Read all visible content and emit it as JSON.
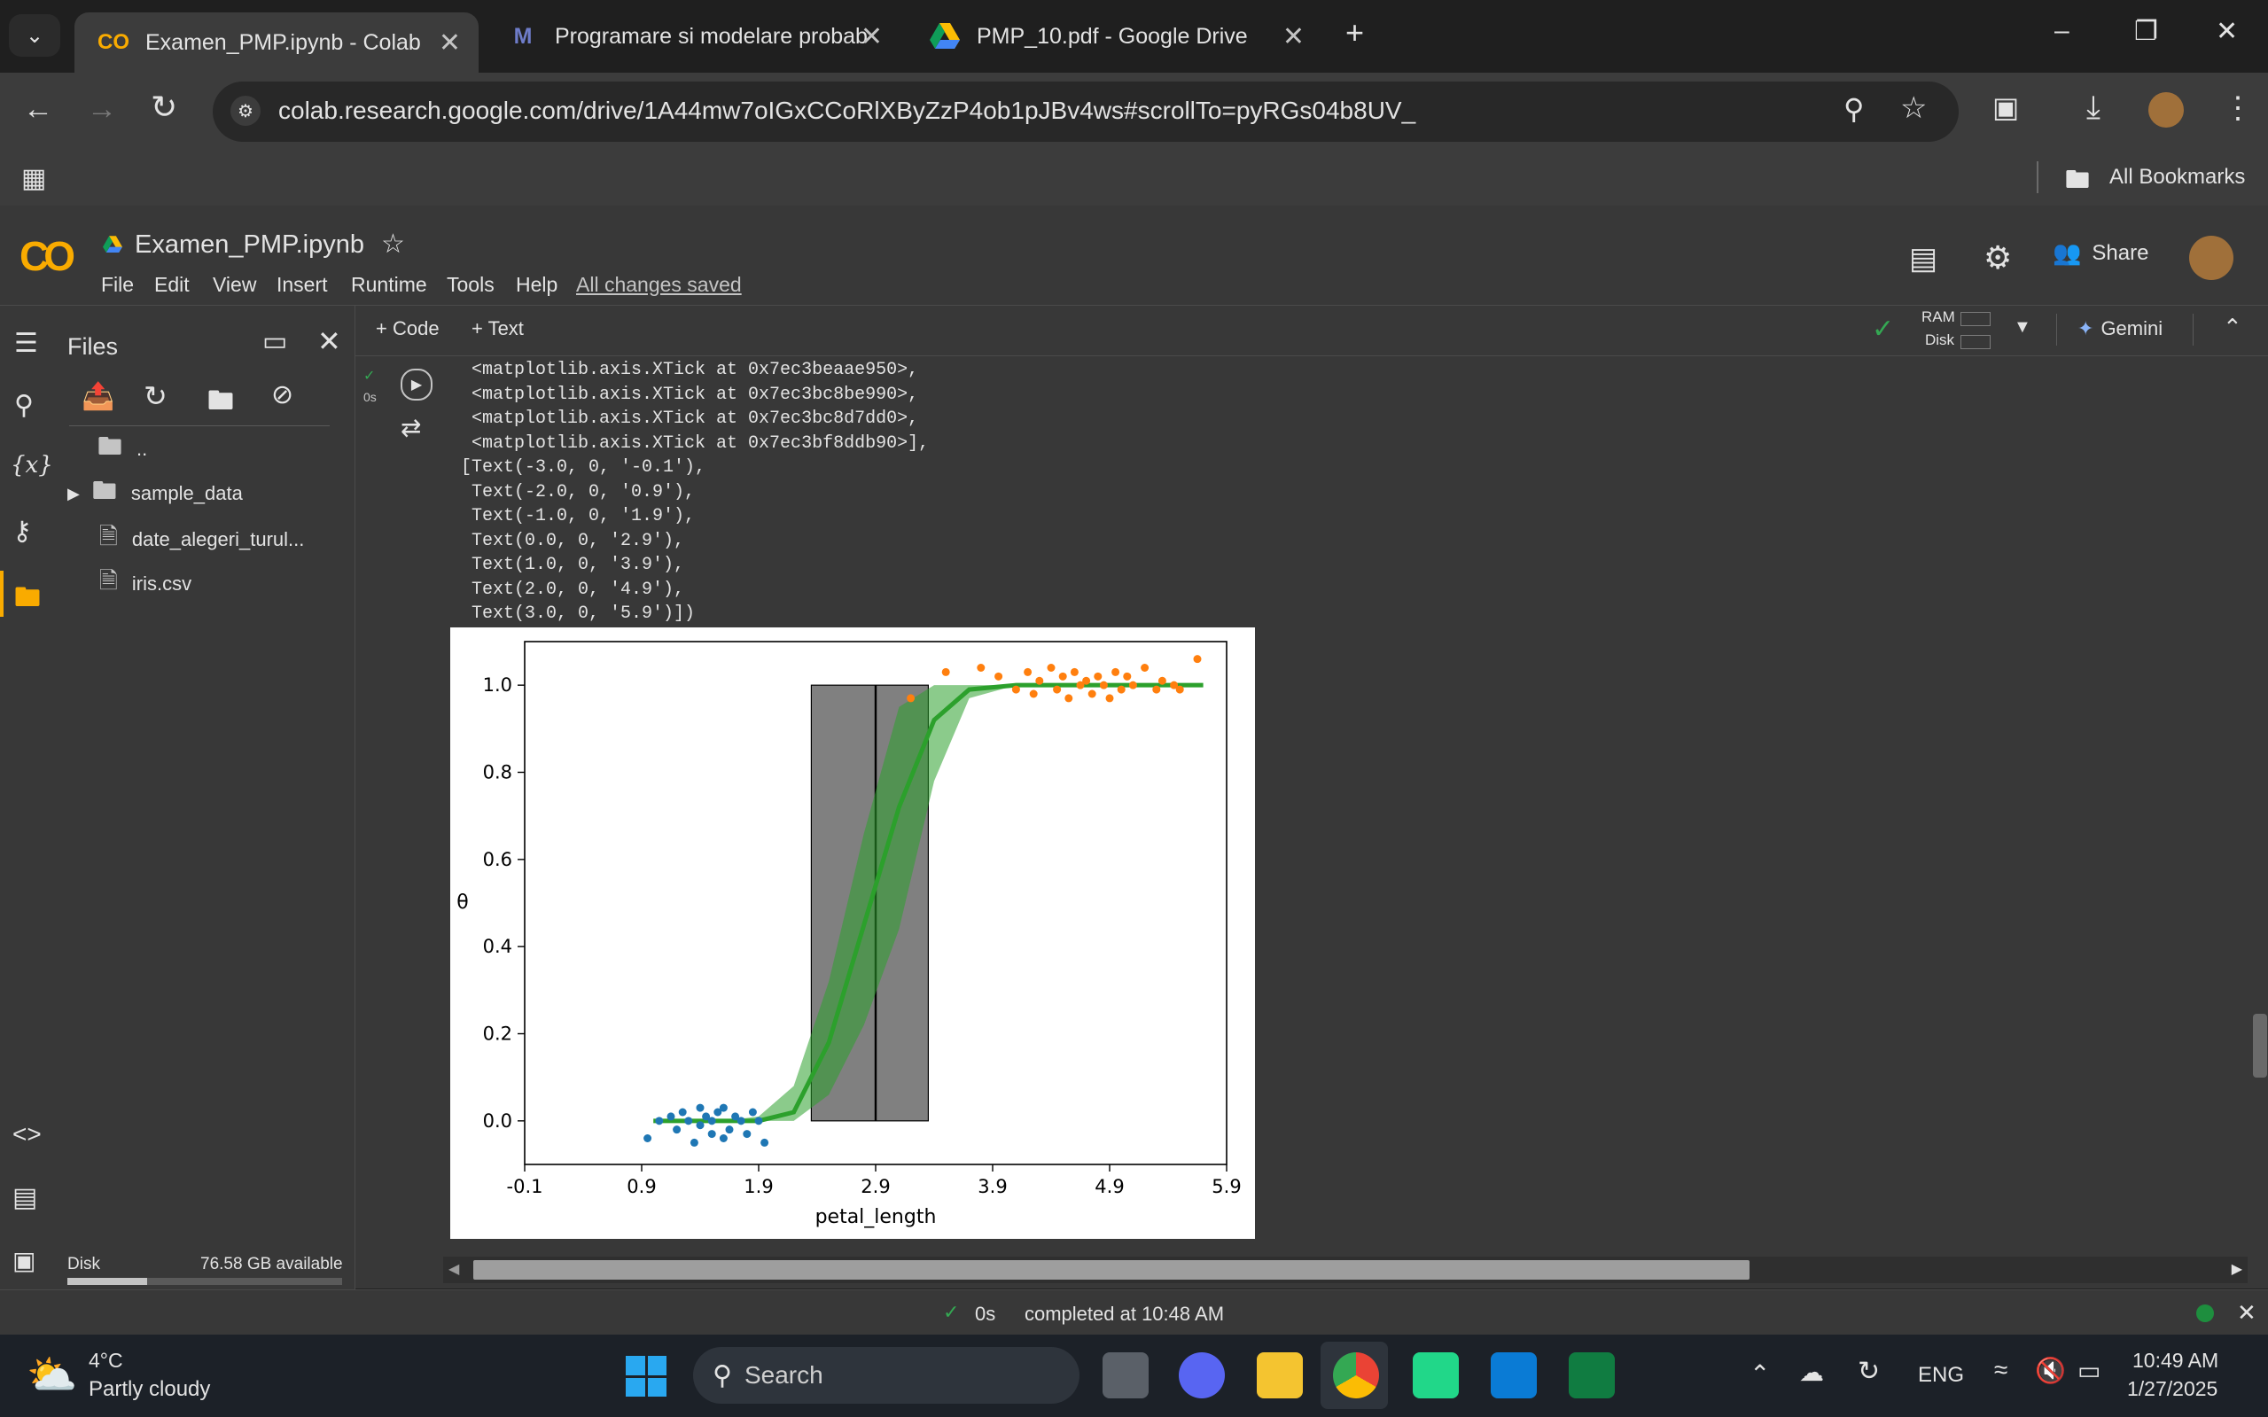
{
  "browser": {
    "tabs": [
      {
        "label": "Examen_PMP.ipynb - Colab",
        "active": true
      },
      {
        "label": "Programare si modelare probab"
      },
      {
        "label": "PMP_10.pdf - Google Drive"
      }
    ],
    "url": "colab.research.google.com/drive/1A44mw7oIGxCCoRlXByZzP4ob1pJBv4ws#scrollTo=pyRGs04b8UV_",
    "bookmarks_label": "All Bookmarks"
  },
  "colab": {
    "notebook_title": "Examen_PMP.ipynb",
    "menu": [
      "File",
      "Edit",
      "View",
      "Insert",
      "Runtime",
      "Tools",
      "Help"
    ],
    "save_status": "All changes saved",
    "share_label": "Share",
    "add_code": "+ Code",
    "add_text": "+ Text",
    "ram_label": "RAM",
    "disk_label": "Disk",
    "gemini_label": "Gemini",
    "exec_time": "0s"
  },
  "sidebar": {
    "title": "Files",
    "items": [
      {
        "label": ".."
      },
      {
        "label": "sample_data"
      },
      {
        "label": "date_alegeri_turul..."
      },
      {
        "label": "iris.csv"
      }
    ],
    "disk_label": "Disk",
    "disk_available": "76.58 GB available",
    "disk_used_fraction": 0.29
  },
  "output_lines": [
    " <matplotlib.axis.XTick at 0x7ec3beaae950>,",
    " <matplotlib.axis.XTick at 0x7ec3bc8be990>,",
    " <matplotlib.axis.XTick at 0x7ec3bc8d7dd0>,",
    " <matplotlib.axis.XTick at 0x7ec3bf8ddb90>],",
    "[Text(-3.0, 0, '-0.1'),",
    " Text(-2.0, 0, '0.9'),",
    " Text(-1.0, 0, '1.9'),",
    " Text(0.0, 0, '2.9'),",
    " Text(1.0, 0, '3.9'),",
    " Text(2.0, 0, '4.9'),",
    " Text(3.0, 0, '5.9')])"
  ],
  "chart_data": {
    "type": "line",
    "xlabel": "petal_length",
    "ylabel": "θ",
    "xlim": [
      -3.0,
      3.0
    ],
    "ylim": [
      -0.1,
      1.1
    ],
    "x_tick_positions": [
      -3,
      -2,
      -1,
      0,
      1,
      2,
      3
    ],
    "x_tick_labels": [
      "-0.1",
      "0.9",
      "1.9",
      "2.9",
      "3.9",
      "4.9",
      "5.9"
    ],
    "y_ticks": [
      0.0,
      0.2,
      0.4,
      0.6,
      0.8,
      1.0
    ],
    "y_tick_labels": [
      "0.0",
      "0.2",
      "0.4",
      "0.6",
      "0.8",
      "1.0"
    ],
    "series": [
      {
        "type": "line",
        "color": "#2ca02c",
        "x": [
          -1.9,
          -1.6,
          -1.3,
          -1.0,
          -0.7,
          -0.4,
          -0.1,
          0.2,
          0.5,
          0.8,
          1.2,
          1.6,
          2.0,
          2.4,
          2.8
        ],
        "y": [
          0.0,
          0.0,
          0.0,
          0.0,
          0.02,
          0.18,
          0.45,
          0.72,
          0.92,
          0.99,
          1.0,
          1.0,
          1.0,
          1.0,
          1.0
        ]
      },
      {
        "type": "band",
        "color": "#2ca02c",
        "x": [
          -1.9,
          -1.6,
          -1.3,
          -1.0,
          -0.7,
          -0.4,
          -0.1,
          0.2,
          0.5,
          0.8,
          1.2,
          1.6,
          2.0,
          2.4,
          2.8
        ],
        "lower": [
          0.0,
          0.0,
          0.0,
          0.0,
          0.0,
          0.06,
          0.22,
          0.44,
          0.78,
          0.97,
          1.0,
          1.0,
          1.0,
          1.0,
          1.0
        ],
        "upper": [
          0.0,
          0.0,
          0.0,
          0.01,
          0.08,
          0.32,
          0.66,
          0.95,
          1.0,
          1.0,
          1.0,
          1.0,
          1.0,
          1.0,
          1.0
        ]
      },
      {
        "type": "scatter",
        "color": "#1f77b4",
        "x": [
          -1.95,
          -1.85,
          -1.75,
          -1.7,
          -1.65,
          -1.6,
          -1.55,
          -1.5,
          -1.5,
          -1.45,
          -1.4,
          -1.4,
          -1.35,
          -1.3,
          -1.3,
          -1.25,
          -1.2,
          -1.15,
          -1.1,
          -1.05,
          -1.0,
          -0.95
        ],
        "y": [
          -0.04,
          0.0,
          0.01,
          -0.02,
          0.02,
          0.0,
          -0.05,
          0.03,
          -0.01,
          0.01,
          0.0,
          -0.03,
          0.02,
          -0.04,
          0.03,
          -0.02,
          0.01,
          0.0,
          -0.03,
          0.02,
          0.0,
          -0.05
        ]
      },
      {
        "type": "scatter",
        "color": "#ff7f0e",
        "x": [
          0.3,
          0.6,
          0.9,
          1.05,
          1.2,
          1.3,
          1.35,
          1.4,
          1.5,
          1.55,
          1.6,
          1.65,
          1.7,
          1.75,
          1.8,
          1.85,
          1.9,
          1.95,
          2.0,
          2.05,
          2.1,
          2.15,
          2.2,
          2.3,
          2.4,
          2.45,
          2.55,
          2.6,
          2.75
        ],
        "y": [
          0.97,
          1.03,
          1.04,
          1.02,
          0.99,
          1.03,
          0.98,
          1.01,
          1.04,
          0.99,
          1.02,
          0.97,
          1.03,
          1.0,
          1.01,
          0.98,
          1.02,
          1.0,
          0.97,
          1.03,
          0.99,
          1.02,
          1.0,
          1.04,
          0.99,
          1.01,
          1.0,
          0.99,
          1.06
        ]
      },
      {
        "type": "rect",
        "color": "#808080",
        "x0": -0.55,
        "x1": 0.45,
        "y0": 0.0,
        "y1": 1.0
      },
      {
        "type": "vline",
        "color": "#000000",
        "x": 0.0,
        "y0": 0.0,
        "y1": 1.0
      }
    ]
  },
  "status": {
    "time": "0s",
    "message": "completed at 10:48 AM"
  },
  "taskbar": {
    "weather_temp": "4°C",
    "weather_desc": "Partly cloudy",
    "search_placeholder": "Search",
    "lang": "ENG",
    "time": "10:49 AM",
    "date": "1/27/2025"
  }
}
